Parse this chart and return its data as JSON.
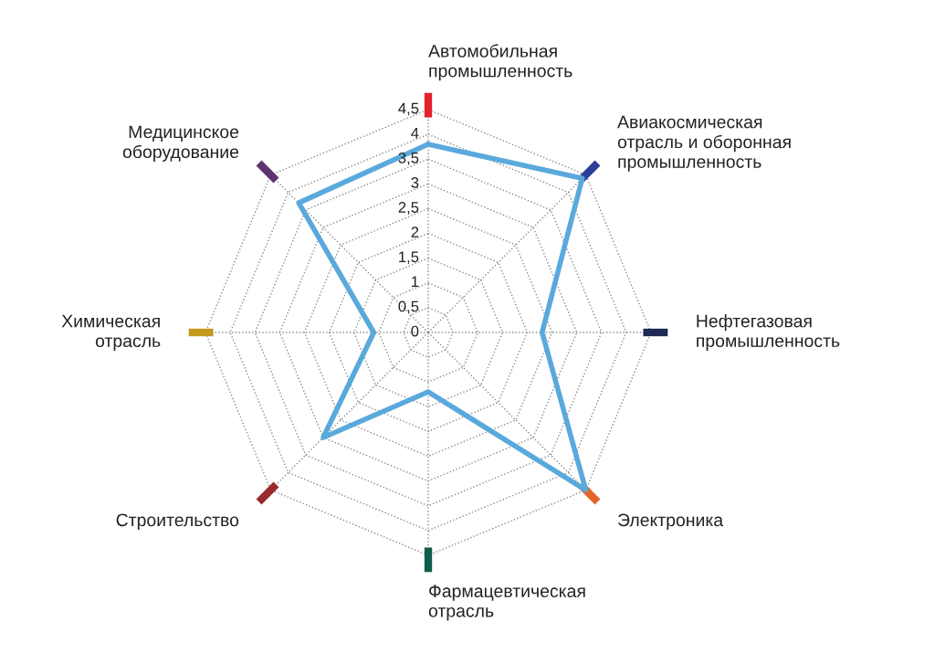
{
  "chart_data": {
    "type": "radar",
    "categories": [
      "Автомобильная\nпромышленность",
      "Авиакосмическая\nотрасль и оборонная\nпромышленность",
      "Нефтегазовая\nпромышленность",
      "Электроника",
      "Фармацевтическая\nотрасль",
      "Строительство",
      "Химическая\nотрасль",
      "Медицинское\nоборудование"
    ],
    "colors": [
      "#e3202b",
      "#2d3f96",
      "#1c2a55",
      "#e5652a",
      "#0e5e4a",
      "#9a2a2e",
      "#c39a1c",
      "#5e3470"
    ],
    "series": [
      {
        "color": "#5aa9dc",
        "values": [
          3.8,
          4.4,
          2.3,
          4.5,
          1.2,
          3.0,
          1.1,
          3.7
        ]
      }
    ],
    "ylim": [
      0,
      4.5
    ],
    "yticks": [
      0,
      {
        "value": 0.5,
        "label": "0,5"
      },
      1,
      {
        "value": 1.5,
        "label": "1,5"
      },
      2,
      {
        "value": 2.5,
        "label": "2,5"
      },
      3,
      {
        "value": 3.5,
        "label": "3,5"
      },
      4,
      {
        "value": 4.5,
        "label": "4,5"
      }
    ],
    "grid": true,
    "line_style": "solid",
    "marker": "none"
  }
}
